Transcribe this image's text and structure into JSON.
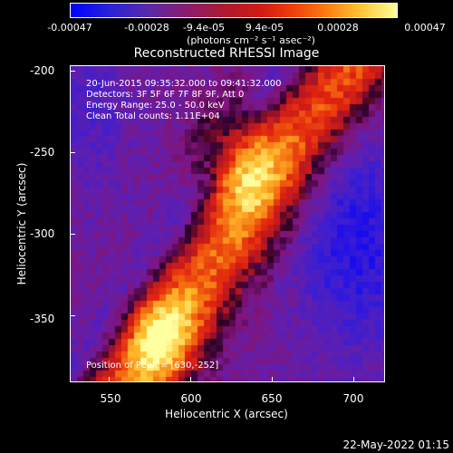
{
  "colorbar": {
    "ticks": [
      "-0.00047",
      "-0.00028",
      "-9.4e-05",
      "9.4e-05",
      "0.00028",
      "0.00047"
    ],
    "units": "(photons cm⁻² s⁻¹ asec⁻²)"
  },
  "title": "Reconstructed RHESSI Image",
  "info": {
    "time_range": "20-Jun-2015 09:35:32.000 to 09:41:32.000",
    "detectors": "Detectors: 3F 5F 6F 7F 8F 9F, Att 0",
    "energy_range": "Energy Range: 25.0 - 50.0 keV",
    "clean_counts": "Clean      Total counts: 1.11E+04",
    "peak": "Position of Peak = [630,-252]"
  },
  "axes": {
    "x_label": "Heliocentric X (arcsec)",
    "y_label": "Heliocentric Y (arcsec)",
    "x_ticks": [
      "550",
      "600",
      "650",
      "700"
    ],
    "y_ticks": [
      "-200",
      "-250",
      "-300",
      "-350"
    ]
  },
  "timestamp": "22-May-2022 01:15"
}
